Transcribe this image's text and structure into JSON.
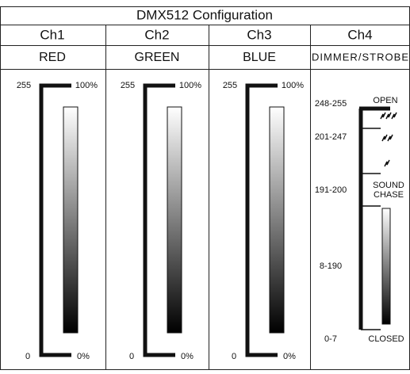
{
  "title": "DMX512 Configuration",
  "channels": [
    {
      "name": "Ch1",
      "label": "RED",
      "top": "255",
      "top_pct": "100%",
      "bottom": "0",
      "bottom_pct": "0%"
    },
    {
      "name": "Ch2",
      "label": "GREEN",
      "top": "255",
      "top_pct": "100%",
      "bottom": "0",
      "bottom_pct": "0%"
    },
    {
      "name": "Ch3",
      "label": "BLUE",
      "top": "255",
      "top_pct": "100%",
      "bottom": "0",
      "bottom_pct": "0%"
    },
    {
      "name": "Ch4",
      "label": "DIMMER/STROBE",
      "ranges": [
        "248-255",
        "201-247",
        "191-200",
        "8-190",
        "0-7"
      ],
      "functions": [
        "OPEN",
        "SOUND",
        "CHASE",
        "CLOSED"
      ]
    }
  ]
}
